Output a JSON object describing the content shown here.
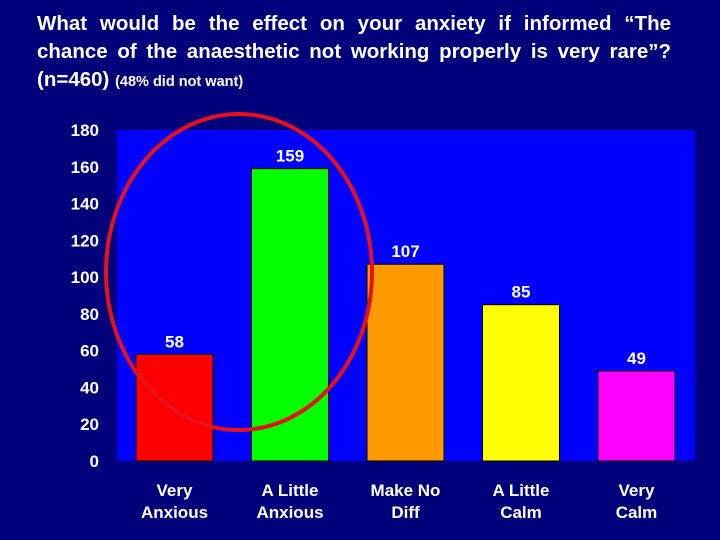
{
  "title": {
    "main": "What would be the effect on your anxiety if informed “The chance of the anaesthetic not working properly is very rare”? (n=460)",
    "note": "(48% did not want)"
  },
  "colors": {
    "background": "#00007a",
    "plot_area": "#0000ff",
    "circle": "#e8101a"
  },
  "chart_data": {
    "type": "bar",
    "title": "What would be the effect on your anxiety if informed “The chance of the anaesthetic not working properly is very rare”? (n=460) (48% did not want)",
    "categories": [
      [
        "Very",
        "Anxious"
      ],
      [
        "A Little",
        "Anxious"
      ],
      [
        "Make No",
        "Diff"
      ],
      [
        "A Little",
        "Calm"
      ],
      [
        "Very",
        "Calm"
      ]
    ],
    "values": [
      58,
      159,
      107,
      85,
      49
    ],
    "value_labels": [
      "58",
      "159",
      "107",
      "85",
      "49"
    ],
    "bar_colors": [
      "#ff0000",
      "#00ff00",
      "#ff9900",
      "#ffff00",
      "#ff00ff"
    ],
    "ylim": [
      0,
      180
    ],
    "yticks": [
      "0",
      "20",
      "40",
      "60",
      "80",
      "100",
      "120",
      "140",
      "160",
      "180"
    ],
    "xlabel": "",
    "ylabel": "",
    "grid": false,
    "legend": "none",
    "annotation": "red ellipse circling Very Anxious and A Little Anxious"
  }
}
